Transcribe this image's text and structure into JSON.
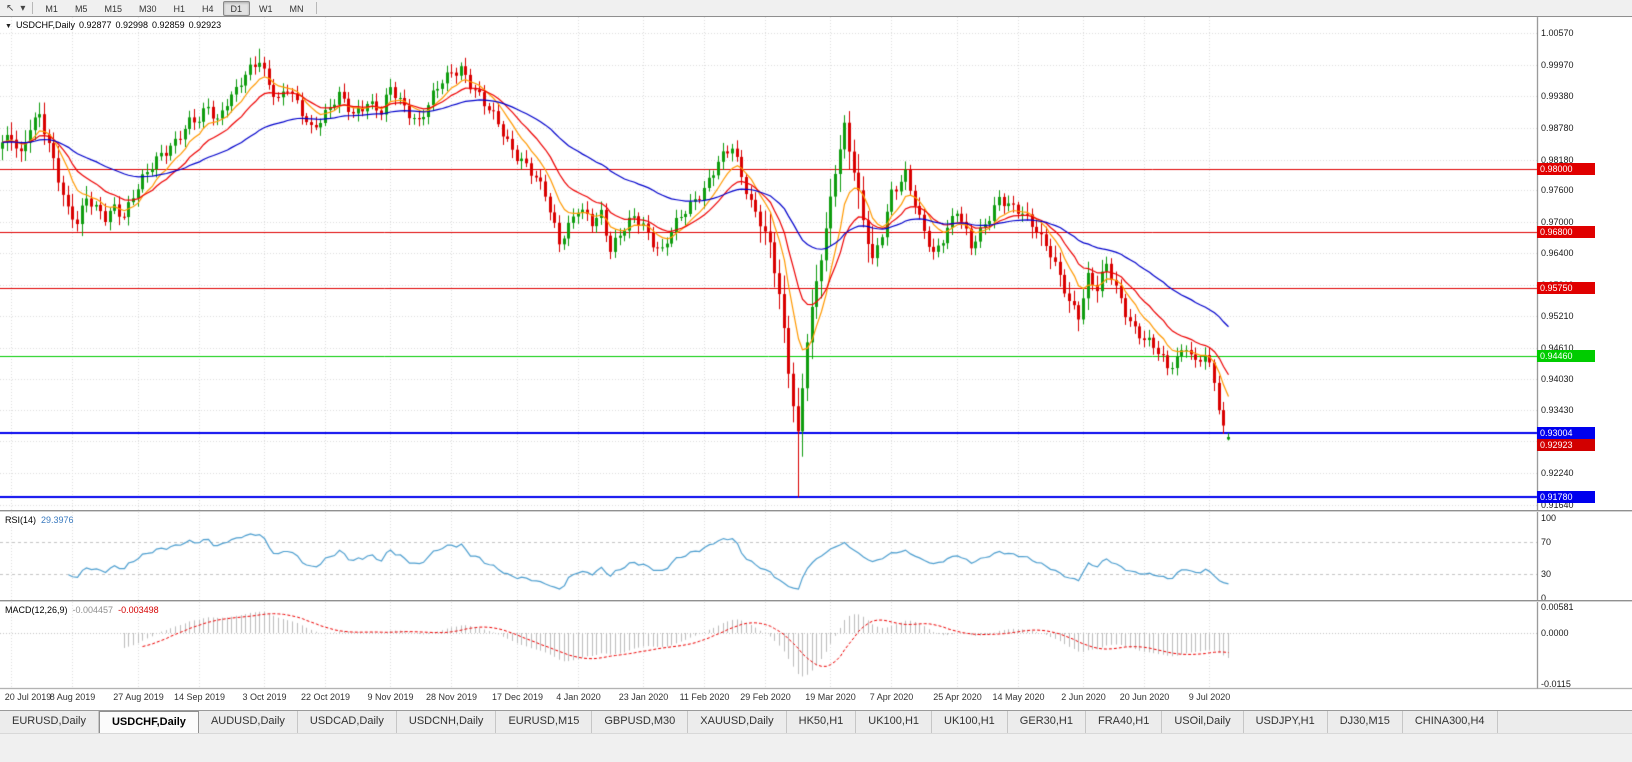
{
  "toolbar": {
    "icons": [
      {
        "name": "cursor-icon",
        "glyph": "↖"
      },
      {
        "name": "timeframes-dropdown-icon",
        "glyph": "▾"
      }
    ],
    "timeframes": [
      "M1",
      "M5",
      "M15",
      "M30",
      "H1",
      "H4",
      "D1",
      "W1",
      "MN"
    ],
    "active_timeframe": "D1"
  },
  "chart": {
    "title": {
      "icon": "▼",
      "symbol": "USDCHF,Daily",
      "open": "0.92877",
      "high": "0.92998",
      "low": "0.92859",
      "close": "0.92923"
    },
    "price_axis": [
      "1.00570",
      "0.99970",
      "0.99380",
      "0.98780",
      "0.98180",
      "0.97600",
      "0.97000",
      "0.96400",
      "0.95810",
      "0.95210",
      "0.94610",
      "0.94030",
      "0.93430",
      "0.92840",
      "0.92240",
      "0.91640"
    ],
    "levels": [
      {
        "price": 0.98,
        "label": "0.98000",
        "color": "#e00000",
        "width": 1
      },
      {
        "price": 0.968,
        "label": "0.96800",
        "color": "#e00000",
        "width": 1
      },
      {
        "price": 0.9575,
        "label": "0.95750",
        "color": "#e00000",
        "width": 1
      },
      {
        "price": 0.9446,
        "label": "0.94460",
        "color": "#00cc00",
        "width": 1
      },
      {
        "price": 0.93004,
        "label": "0.93004",
        "color": "#0000ee",
        "width": 2
      },
      {
        "price": 0.9178,
        "label": "0.91780",
        "color": "#0000ee",
        "width": 2
      }
    ],
    "current_price": {
      "label": "0.92923",
      "value": 0.92923,
      "color": "#d20000"
    },
    "date_axis": [
      "20 Jul 2019",
      "8 Aug 2019",
      "27 Aug 2019",
      "14 Sep 2019",
      "3 Oct 2019",
      "22 Oct 2019",
      "9 Nov 2019",
      "28 Nov 2019",
      "17 Dec 2019",
      "4 Jan 2020",
      "23 Jan 2020",
      "11 Feb 2020",
      "29 Feb 2020",
      "19 Mar 2020",
      "7 Apr 2020",
      "25 Apr 2020",
      "14 May 2020",
      "2 Jun 2020",
      "20 Jun 2020",
      "9 Jul 2020"
    ],
    "colors": {
      "up_candle": "#0f9d0f",
      "down_candle": "#d90000",
      "grid": "#dcdcdc",
      "axis_line": "#7a7a7a",
      "background": "#ffffff"
    }
  },
  "chart_data": {
    "type": "candlestick",
    "symbol": "USDCHF",
    "period": "Daily",
    "bars": 263,
    "price_range": [
      0.9154,
      1.0088
    ],
    "anchors": [
      [
        0,
        0.9845
      ],
      [
        2,
        0.986
      ],
      [
        4,
        0.983
      ],
      [
        6,
        0.9885
      ],
      [
        8,
        0.99
      ],
      [
        10,
        0.984
      ],
      [
        12,
        0.978
      ],
      [
        14,
        0.9725
      ],
      [
        16,
        0.9705
      ],
      [
        18,
        0.9745
      ],
      [
        20,
        0.972
      ],
      [
        22,
        0.9705
      ],
      [
        24,
        0.973
      ],
      [
        26,
        0.9715
      ],
      [
        28,
        0.975
      ],
      [
        31,
        0.979
      ],
      [
        34,
        0.983
      ],
      [
        37,
        0.9855
      ],
      [
        40,
        0.9885
      ],
      [
        42,
        0.989
      ],
      [
        44,
        0.992
      ],
      [
        46,
        0.9895
      ],
      [
        48,
        0.993
      ],
      [
        50,
        0.9945
      ],
      [
        52,
        0.9975
      ],
      [
        55,
        1.001
      ],
      [
        57,
        0.9965
      ],
      [
        59,
        0.993
      ],
      [
        61,
        0.995
      ],
      [
        63,
        0.992
      ],
      [
        66,
        0.988
      ],
      [
        69,
        0.9905
      ],
      [
        72,
        0.9935
      ],
      [
        75,
        0.9905
      ],
      [
        78,
        0.993
      ],
      [
        81,
        0.9905
      ],
      [
        83,
        0.995
      ],
      [
        86,
        0.992
      ],
      [
        89,
        0.989
      ],
      [
        92,
        0.9935
      ],
      [
        94,
        0.9965
      ],
      [
        96,
        0.9985
      ],
      [
        98,
        0.9995
      ],
      [
        100,
        0.996
      ],
      [
        103,
        0.992
      ],
      [
        106,
        0.989
      ],
      [
        108,
        0.9855
      ],
      [
        110,
        0.9825
      ],
      [
        113,
        0.979
      ],
      [
        116,
        0.9755
      ],
      [
        119,
        0.9665
      ],
      [
        121,
        0.969
      ],
      [
        123,
        0.972
      ],
      [
        126,
        0.97
      ],
      [
        128,
        0.972
      ],
      [
        130,
        0.965
      ],
      [
        133,
        0.9685
      ],
      [
        135,
        0.9705
      ],
      [
        137,
        0.9695
      ],
      [
        139,
        0.9665
      ],
      [
        141,
        0.9645
      ],
      [
        143,
        0.968
      ],
      [
        146,
        0.972
      ],
      [
        148,
        0.9745
      ],
      [
        150,
        0.9765
      ],
      [
        153,
        0.981
      ],
      [
        156,
        0.984
      ],
      [
        158,
        0.979
      ],
      [
        160,
        0.974
      ],
      [
        162,
        0.97
      ],
      [
        164,
        0.965
      ],
      [
        166,
        0.956
      ],
      [
        168,
        0.942
      ],
      [
        170,
        0.93
      ],
      [
        172,
        0.948
      ],
      [
        174,
        0.958
      ],
      [
        176,
        0.968
      ],
      [
        178,
        0.98
      ],
      [
        180,
        0.9885
      ],
      [
        182,
        0.98
      ],
      [
        184,
        0.97
      ],
      [
        186,
        0.962
      ],
      [
        188,
        0.968
      ],
      [
        190,
        0.976
      ],
      [
        193,
        0.979
      ],
      [
        196,
        0.97
      ],
      [
        199,
        0.964
      ],
      [
        202,
        0.969
      ],
      [
        204,
        0.972
      ],
      [
        207,
        0.965
      ],
      [
        210,
        0.97
      ],
      [
        213,
        0.9745
      ],
      [
        216,
        0.972
      ],
      [
        218,
        0.9715
      ],
      [
        221,
        0.969
      ],
      [
        224,
        0.964
      ],
      [
        226,
        0.959
      ],
      [
        228,
        0.9545
      ],
      [
        230,
        0.9525
      ],
      [
        232,
        0.96
      ],
      [
        234,
        0.9575
      ],
      [
        236,
        0.9615
      ],
      [
        238,
        0.957
      ],
      [
        240,
        0.953
      ],
      [
        242,
        0.95
      ],
      [
        245,
        0.947
      ],
      [
        247,
        0.945
      ],
      [
        249,
        0.942
      ],
      [
        251,
        0.9445
      ],
      [
        253,
        0.947
      ],
      [
        255,
        0.943
      ],
      [
        257,
        0.9445
      ],
      [
        259,
        0.9395
      ],
      [
        260,
        0.935
      ],
      [
        261,
        0.931
      ],
      [
        262,
        0.92923
      ]
    ],
    "wick_lows": {
      "15": 0.9688,
      "169": 0.932,
      "170": 0.9178,
      "171": 0.9255
    },
    "wick_highs": {
      "55": 1.0028,
      "98": 1.0002,
      "180": 0.9902
    },
    "last_candle": {
      "open": 0.92877,
      "high": 0.92998,
      "low": 0.92859,
      "close": 0.92923
    },
    "moving_averages": [
      {
        "name": "ma-fast",
        "period": 8,
        "color": "#ff9900"
      },
      {
        "name": "ma-mid",
        "period": 16,
        "color": "#ee0000"
      },
      {
        "name": "ma-slow",
        "period": 45,
        "color": "#0000cc"
      }
    ]
  },
  "rsi": {
    "label": "RSI(14)",
    "value": "29.3976",
    "period": 14,
    "levels": [
      100,
      70,
      30,
      0
    ],
    "line_color": "#4e9fd0"
  },
  "macd": {
    "label": "MACD(12,26,9)",
    "main_value": "-0.004457",
    "signal_value": "-0.003498",
    "scale": [
      {
        "label": "0.00581",
        "value": 0.00581
      },
      {
        "label": "0.0000",
        "value": 0
      },
      {
        "label": "-0.0115",
        "value": -0.0115
      }
    ],
    "histogram_color": "#bdbdbd",
    "signal_color": "#ee0000"
  },
  "tabs": {
    "items": [
      "EURUSD,Daily",
      "USDCHF,Daily",
      "AUDUSD,Daily",
      "USDCAD,Daily",
      "USDCNH,Daily",
      "EURUSD,M15",
      "GBPUSD,M30",
      "XAUUSD,Daily",
      "HK50,H1",
      "UK100,H1",
      "UK100,H1",
      "GER30,H1",
      "FRA40,H1",
      "USOil,Daily",
      "USDJPY,H1",
      "DJ30,M15",
      "CHINA300,H4"
    ],
    "active_index": 1
  }
}
